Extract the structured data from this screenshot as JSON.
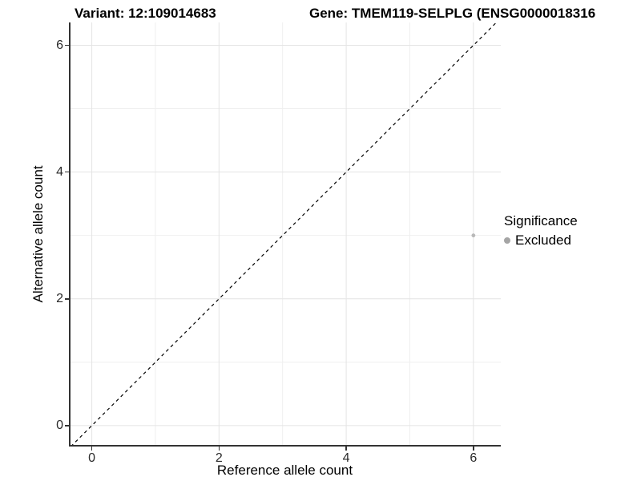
{
  "title": {
    "variant": "Variant: 12:109014683",
    "gene": "Gene: TMEM119-SELPLG (ENSG0000018316"
  },
  "axes": {
    "x": {
      "label": "Reference allele count",
      "tick_labels": [
        "0",
        "2",
        "4",
        "6"
      ]
    },
    "y": {
      "label": "Alternative allele count",
      "tick_labels": [
        "0",
        "2",
        "4",
        "6"
      ]
    }
  },
  "legend": {
    "title": "Significance",
    "items": [
      {
        "label": "Excluded",
        "color": "#a5a5a5"
      }
    ]
  },
  "colors": {
    "point": "#b9b9b9",
    "grid_major": "#e4e4e4",
    "grid_minor": "#efefef",
    "axis": "#333333",
    "identity_line": "#000000"
  },
  "chart_data": {
    "type": "scatter",
    "title": "Variant: 12:109014683 — Gene: TMEM119-SELPLG (ENSG0000018316",
    "xlabel": "Reference allele count",
    "ylabel": "Alternative allele count",
    "xlim": [
      -0.36,
      6.43
    ],
    "ylim": [
      -0.33,
      6.36
    ],
    "x_major_ticks": [
      0,
      2,
      4,
      6
    ],
    "y_major_ticks": [
      0,
      2,
      4,
      6
    ],
    "x_minor_gridlines": [
      1,
      3,
      5
    ],
    "y_minor_gridlines": [
      1,
      3,
      5
    ],
    "grid": true,
    "legend_position": "right",
    "series": [
      {
        "name": "Excluded",
        "points": [
          {
            "x": 6,
            "y": 3
          }
        ]
      }
    ],
    "identity_line": {
      "slope": 1,
      "intercept": 0,
      "style": "dashed"
    }
  }
}
